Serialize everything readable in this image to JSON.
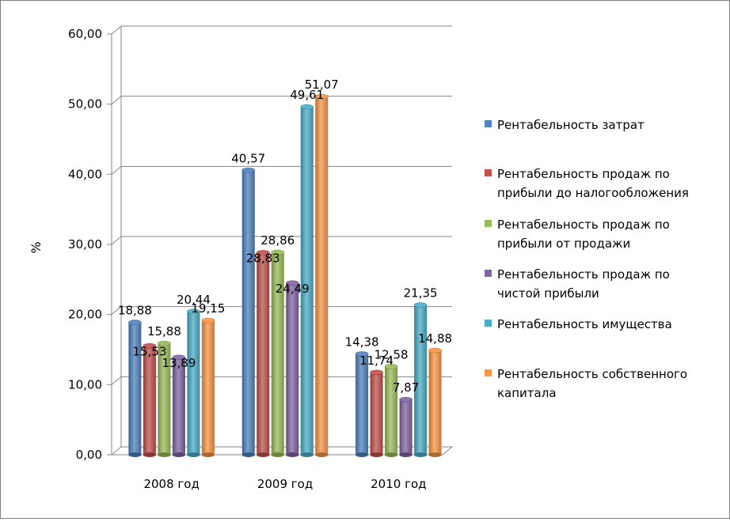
{
  "chart_data": {
    "type": "bar",
    "categories": [
      "2008 год",
      "2009 год",
      "2010 год"
    ],
    "ylabel": "%",
    "ylim": [
      0,
      60
    ],
    "yticks": [
      "0,00",
      "10,00",
      "20,00",
      "30,00",
      "40,00",
      "50,00",
      "60,00"
    ],
    "grid": true,
    "legend_position": "right",
    "series": [
      {
        "name": "Рентабельность затрат",
        "lines": [
          "Рентабельность затрат"
        ],
        "color": "#4F81BD",
        "values": [
          18.88,
          40.57,
          14.38
        ],
        "labels": [
          "18,88",
          "40,57",
          "14,38"
        ]
      },
      {
        "name": "Рентабельность продаж по прибыли до налогообложения",
        "lines": [
          "Рентабельность продаж по",
          "прибыли до налогообложения"
        ],
        "color": "#C0504D",
        "values": [
          15.53,
          28.83,
          11.74
        ],
        "labels": [
          "15,53",
          "28,83",
          "11,74"
        ]
      },
      {
        "name": "Рентабельность продаж по прибыли от продажи",
        "lines": [
          "Рентабельность продаж по",
          "прибыли от продажи"
        ],
        "color": "#9BBB59",
        "values": [
          15.88,
          28.86,
          12.58
        ],
        "labels": [
          "15,88",
          "28,86",
          "12,58"
        ]
      },
      {
        "name": "Рентабельность продаж по чистой прибыли",
        "lines": [
          "Рентабельность продаж по",
          "чистой прибыли"
        ],
        "color": "#8064A2",
        "values": [
          13.89,
          24.49,
          7.87
        ],
        "labels": [
          "13,89",
          "24,49",
          "7,87"
        ]
      },
      {
        "name": "Рентабельность имущества",
        "lines": [
          "Рентабельность имущества"
        ],
        "color": "#4BACC6",
        "values": [
          20.44,
          49.61,
          21.35
        ],
        "labels": [
          "20,44",
          "49,61",
          "21,35"
        ]
      },
      {
        "name": "Рентабельность собственного капитала",
        "lines": [
          "Рентабельность собственного",
          "капитала"
        ],
        "color": "#F79646",
        "values": [
          19.15,
          51.07,
          14.88
        ],
        "labels": [
          "19,15",
          "51,07",
          "14,88"
        ]
      }
    ]
  }
}
